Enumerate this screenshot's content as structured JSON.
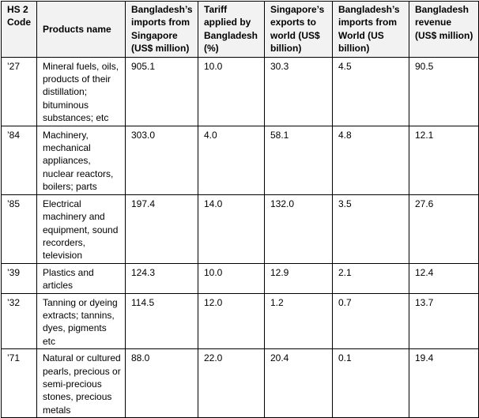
{
  "table": {
    "headers": [
      "HS 2 Code",
      "Products name",
      "Bangladesh’s imports from Singapore (US$ million)",
      "Tariff applied by Bangladesh (%)",
      "Singapore’s exports to world (US$ billion)",
      "Bangladesh’s imports from World (US billion)",
      "Bangladesh revenue (US$ million)"
    ],
    "rows": [
      [
        "’27",
        "Mineral fuels, oils, products of their distillation; bituminous substances; etc",
        "905.1",
        "10.0",
        "30.3",
        "4.5",
        "90.5"
      ],
      [
        "’84",
        "Machinery, mechanical appliances, nuclear reactors, boilers; parts",
        "303.0",
        "4.0",
        "58.1",
        "4.8",
        "12.1"
      ],
      [
        "’85",
        "Electrical machinery and equipment, sound recorders, television",
        "197.4",
        "14.0",
        "132.0",
        "3.5",
        "27.6"
      ],
      [
        "’39",
        "Plastics and articles",
        "124.3",
        "10.0",
        "12.9",
        "2.1",
        "12.4"
      ],
      [
        "’32",
        "Tanning or dyeing extracts; tannins, dyes, pigments etc",
        "114.5",
        "12.0",
        "1.2",
        "0.7",
        "13.7"
      ],
      [
        "’71",
        "Natural or cultured pearls, precious or semi-precious stones, precious metals",
        "88.0",
        "22.0",
        "20.4",
        "0.1",
        "19.4"
      ]
    ]
  }
}
